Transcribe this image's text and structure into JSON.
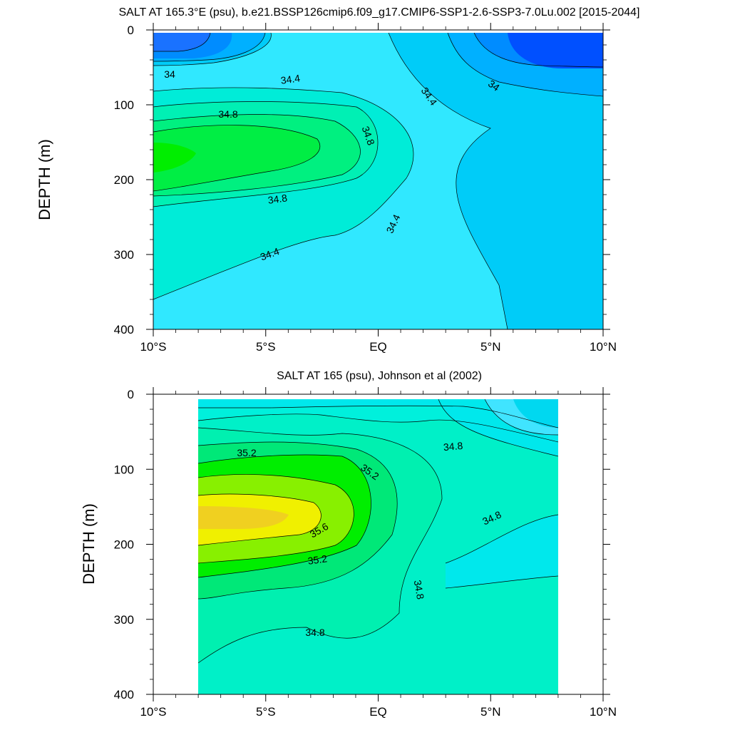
{
  "chart_data": [
    {
      "type": "contour",
      "title": "SALT AT 165.3°E (psu), b.e21.BSSP126cmip6.f09_g17.CMIP6-SSP1-2.6-SSP3-7.0Lu.002 [2015-2044]",
      "ylabel": "DEPTH (m)",
      "xlabel": "",
      "x_ticks": [
        "10°S",
        "5°S",
        "EQ",
        "5°N",
        "10°N"
      ],
      "x_values": [
        -10,
        -5,
        0,
        5,
        10
      ],
      "y_ticks": [
        "0",
        "100",
        "200",
        "300",
        "400"
      ],
      "y_values": [
        0,
        100,
        200,
        300,
        400
      ],
      "xlim": [
        -10,
        10
      ],
      "ylim": [
        400,
        0
      ],
      "contour_levels": [
        33.6,
        33.8,
        34.0,
        34.2,
        34.4,
        34.6,
        34.8,
        35.0
      ],
      "contour_labels": [
        "34",
        "34.4",
        "34.8",
        "34.8",
        "34.8",
        "34.4",
        "34.4",
        "34.4",
        "34"
      ],
      "features": {
        "salinity_max_psu": 35.0,
        "salinity_max_location": {
          "lat": -10,
          "depth_m": 170
        },
        "salinity_min_psu": 33.6,
        "salinity_min_location": {
          "lat": 8,
          "depth_m": 25
        }
      },
      "colors": {
        "fresh": "#0050ff",
        "mid": "#00e5ff",
        "saline": "#00ee00"
      }
    },
    {
      "type": "contour",
      "title": "SALT AT 165 (psu), Johnson et al (2002)",
      "ylabel": "DEPTH (m)",
      "xlabel": "",
      "x_ticks": [
        "10°S",
        "5°S",
        "EQ",
        "5°N",
        "10°N"
      ],
      "x_values": [
        -10,
        -5,
        0,
        5,
        10
      ],
      "y_ticks": [
        "0",
        "100",
        "200",
        "300",
        "400"
      ],
      "y_values": [
        0,
        100,
        200,
        300,
        400
      ],
      "xlim": [
        -10,
        10
      ],
      "ylim": [
        400,
        0
      ],
      "data_xlim": [
        -8,
        8
      ],
      "contour_levels": [
        34.4,
        34.6,
        34.8,
        35.0,
        35.2,
        35.4,
        35.6,
        35.8
      ],
      "contour_labels": [
        "35.2",
        "35.2",
        "34.8",
        "35.6",
        "34.8",
        "35.2",
        "34.8",
        "34.8"
      ],
      "features": {
        "salinity_max_psu": 35.8,
        "salinity_max_location": {
          "lat": -6,
          "depth_m": 165
        },
        "salinity_min_psu": 34.4,
        "salinity_min_location": {
          "lat": 7,
          "depth_m": 30
        }
      },
      "colors": {
        "fresh": "#00d8f0",
        "mid": "#00f0c8",
        "saline": "#f8e020"
      }
    }
  ]
}
